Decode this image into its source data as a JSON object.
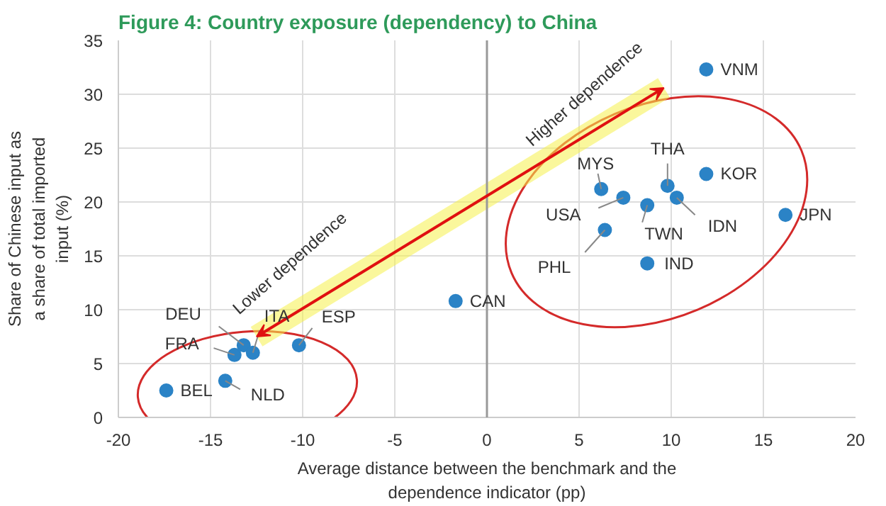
{
  "chart_data": {
    "type": "scatter",
    "title": "Figure 4: Country exposure (dependency) to China",
    "xlabel": "Average distance between the benchmark and the dependence indicator (pp)",
    "ylabel": "Share of Chinese input as a share of total imported input (%)",
    "x": [
      -17.4,
      -14.2,
      -13.7,
      -13.2,
      -12.7,
      -10.2,
      -1.7,
      6.2,
      7.4,
      6.4,
      8.7,
      8.7,
      9.8,
      10.3,
      11.9,
      11.9,
      16.2
    ],
    "series": [
      {
        "color": "#2b83c6",
        "values": [
          2.5,
          3.4,
          5.8,
          6.7,
          6.0,
          6.7,
          10.8,
          21.2,
          20.4,
          17.4,
          19.7,
          14.3,
          21.5,
          20.4,
          22.6,
          32.3,
          18.8
        ]
      }
    ],
    "marker": "circle",
    "xlim": [
      -20,
      20
    ],
    "ylim": [
      0,
      35
    ],
    "xticks": [
      -20,
      -15,
      -10,
      -5,
      0,
      5,
      10,
      15,
      20
    ],
    "yticks": [
      0,
      5,
      10,
      15,
      20,
      25,
      30,
      35
    ],
    "grid": true,
    "ref_lines": [
      {
        "axis": "x",
        "value": 0,
        "color": "#999999"
      }
    ],
    "annotations": [
      {
        "text": "BEL",
        "x": -17.4,
        "y": 2.5
      },
      {
        "text": "NLD",
        "x": -14.2,
        "y": 3.4
      },
      {
        "text": "FRA",
        "x": -13.7,
        "y": 5.8
      },
      {
        "text": "DEU",
        "x": -13.2,
        "y": 6.7
      },
      {
        "text": "ITA",
        "x": -12.7,
        "y": 6.0
      },
      {
        "text": "ESP",
        "x": -10.2,
        "y": 6.7
      },
      {
        "text": "CAN",
        "x": -1.7,
        "y": 10.8
      },
      {
        "text": "MYS",
        "x": 6.2,
        "y": 21.2
      },
      {
        "text": "USA",
        "x": 7.4,
        "y": 20.4
      },
      {
        "text": "PHL",
        "x": 6.4,
        "y": 17.4
      },
      {
        "text": "TWN",
        "x": 8.7,
        "y": 19.7
      },
      {
        "text": "IND",
        "x": 8.7,
        "y": 14.3
      },
      {
        "text": "THA",
        "x": 9.8,
        "y": 21.5
      },
      {
        "text": "IDN",
        "x": 10.3,
        "y": 20.4
      },
      {
        "text": "KOR",
        "x": 11.9,
        "y": 22.6
      },
      {
        "text": "VNM",
        "x": 11.9,
        "y": 32.3
      },
      {
        "text": "JPN",
        "x": 16.2,
        "y": 18.8
      },
      "Lower  dependence",
      "Higher dependence"
    ]
  }
}
